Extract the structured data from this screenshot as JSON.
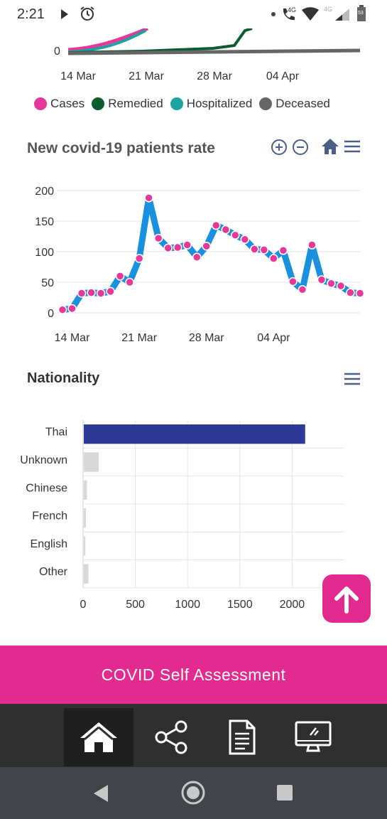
{
  "status_bar": {
    "time": "2:21",
    "network_4g": "4G",
    "battery": "53"
  },
  "top_chart": {
    "y_tick": "0",
    "x_ticks": [
      "14 Mar",
      "21 Mar",
      "28 Mar",
      "04 Apr"
    ],
    "legend": [
      {
        "label": "Cases",
        "color": "#e6389a"
      },
      {
        "label": "Remedied",
        "color": "#0b5c2e"
      },
      {
        "label": "Hospitalized",
        "color": "#1aa3a3"
      },
      {
        "label": "Deceased",
        "color": "#666666"
      }
    ]
  },
  "chart_data": [
    {
      "type": "line",
      "title": "New covid-19 patients rate",
      "x_ticks": [
        "14 Mar",
        "21 Mar",
        "28 Mar",
        "04 Apr"
      ],
      "y_ticks": [
        "0",
        "50",
        "100",
        "150",
        "200"
      ],
      "ylim": [
        0,
        200
      ],
      "x": [
        "2020-03-13",
        "2020-03-14",
        "2020-03-15",
        "2020-03-16",
        "2020-03-17",
        "2020-03-18",
        "2020-03-19",
        "2020-03-20",
        "2020-03-21",
        "2020-03-22",
        "2020-03-23",
        "2020-03-24",
        "2020-03-25",
        "2020-03-26",
        "2020-03-27",
        "2020-03-28",
        "2020-03-29",
        "2020-03-30",
        "2020-03-31",
        "2020-04-01",
        "2020-04-02",
        "2020-04-03",
        "2020-04-04",
        "2020-04-05",
        "2020-04-06",
        "2020-04-07",
        "2020-04-08",
        "2020-04-09",
        "2020-04-10",
        "2020-04-11",
        "2020-04-12",
        "2020-04-13"
      ],
      "values": [
        5,
        7,
        32,
        33,
        32,
        35,
        60,
        50,
        89,
        188,
        122,
        106,
        107,
        111,
        91,
        109,
        143,
        136,
        127,
        120,
        104,
        103,
        89,
        102,
        51,
        38,
        111,
        54,
        48,
        44,
        33,
        32
      ],
      "line_color": "#1a90e0",
      "marker_color": "#e6389a"
    },
    {
      "type": "bar",
      "title": "Nationality",
      "categories": [
        "Thai",
        "Unknown",
        "Chinese",
        "French",
        "English",
        "Other"
      ],
      "values": [
        2118,
        143,
        30,
        20,
        15,
        44
      ],
      "x_ticks": [
        "0",
        "500",
        "1000",
        "1500",
        "2000"
      ],
      "xlim": [
        0,
        2500
      ],
      "colors": [
        "#2e3a96",
        "#d9d9d9",
        "#d9d9d9",
        "#d9d9d9",
        "#d9d9d9",
        "#d9d9d9"
      ]
    }
  ],
  "cta": {
    "label": "COVID Self Assessment"
  },
  "bottom_nav": [
    {
      "icon": "home-icon"
    },
    {
      "icon": "share-icon"
    },
    {
      "icon": "document-icon"
    },
    {
      "icon": "monitor-icon"
    }
  ]
}
